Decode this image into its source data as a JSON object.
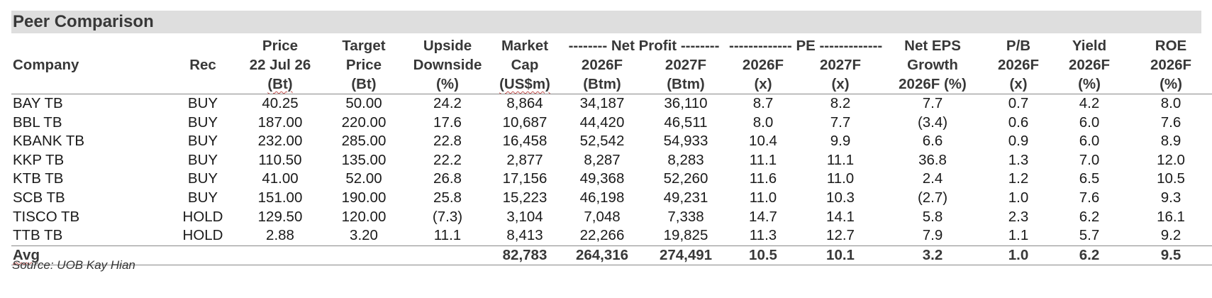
{
  "title": "Peer Comparison",
  "headers": {
    "group_net_profit": "-------- Net Profit --------",
    "group_pe": "------------- PE -------------",
    "company": "Company",
    "rec": "Rec",
    "price": [
      "Price",
      "22 Jul 26",
      "(Bt)"
    ],
    "target_price": [
      "Target",
      "Price",
      "(Bt)"
    ],
    "upside": [
      "Upside",
      "Downside",
      "(%)"
    ],
    "market_cap": [
      "Market",
      "Cap",
      "(US$m)"
    ],
    "np_2026": [
      "2026F",
      "(Btm)"
    ],
    "np_2027": [
      "2027F",
      "(Btm)"
    ],
    "pe_2026": [
      "2026F",
      "(x)"
    ],
    "pe_2027": [
      "2027F",
      "(x)"
    ],
    "eps_growth": [
      "Net EPS",
      "Growth",
      "2026F (%)"
    ],
    "pb": [
      "P/B",
      "2026F",
      "(x)"
    ],
    "yield": [
      "Yield",
      "2026F",
      "(%)"
    ],
    "roe": [
      "ROE",
      "2026F",
      "(%)"
    ]
  },
  "rows": [
    [
      "BAY TB",
      "BUY",
      "40.25",
      "50.00",
      "24.2",
      "8,864",
      "34,187",
      "36,110",
      "8.7",
      "8.2",
      "7.7",
      "0.7",
      "4.2",
      "8.0"
    ],
    [
      "BBL TB",
      "BUY",
      "187.00",
      "220.00",
      "17.6",
      "10,687",
      "44,420",
      "46,511",
      "8.0",
      "7.7",
      "(3.4)",
      "0.6",
      "6.0",
      "7.6"
    ],
    [
      "KBANK TB",
      "BUY",
      "232.00",
      "285.00",
      "22.8",
      "16,458",
      "52,542",
      "54,933",
      "10.4",
      "9.9",
      "6.6",
      "0.9",
      "6.0",
      "8.9"
    ],
    [
      "KKP TB",
      "BUY",
      "110.50",
      "135.00",
      "22.2",
      "2,877",
      "8,287",
      "8,283",
      "11.1",
      "11.1",
      "36.8",
      "1.3",
      "7.0",
      "12.0"
    ],
    [
      "KTB TB",
      "BUY",
      "41.00",
      "52.00",
      "26.8",
      "17,156",
      "49,368",
      "52,260",
      "11.6",
      "11.0",
      "2.4",
      "1.2",
      "6.5",
      "10.5"
    ],
    [
      "SCB TB",
      "BUY",
      "151.00",
      "190.00",
      "25.8",
      "15,223",
      "46,198",
      "49,231",
      "11.0",
      "10.3",
      "(2.7)",
      "1.0",
      "7.6",
      "9.3"
    ],
    [
      "TISCO TB",
      "HOLD",
      "129.50",
      "120.00",
      "(7.3)",
      "3,104",
      "7,048",
      "7,338",
      "14.7",
      "14.1",
      "5.8",
      "2.3",
      "6.2",
      "16.1"
    ],
    [
      "TTB TB",
      "HOLD",
      "2.88",
      "3.20",
      "11.1",
      "8,413",
      "22,266",
      "19,825",
      "11.3",
      "12.7",
      "7.9",
      "1.1",
      "5.7",
      "9.2"
    ]
  ],
  "avg": {
    "label": "Avg",
    "market_cap": "82,783",
    "np_2026": "264,316",
    "np_2027": "274,491",
    "pe_2026": "10.5",
    "pe_2027": "10.1",
    "eps_growth": "3.2",
    "pb": "1.0",
    "yield": "6.2",
    "roe": "9.5"
  },
  "source": "Source: UOB Kay Hian"
}
